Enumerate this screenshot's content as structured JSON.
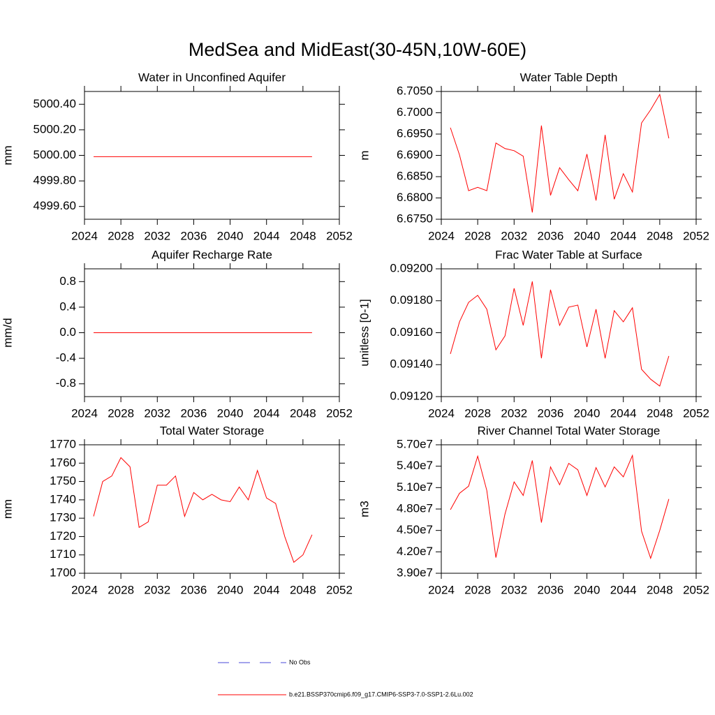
{
  "title": "MedSea and MidEast(30-45N,10W-60E)",
  "chart_data": [
    {
      "type": "line",
      "title": "Water in Unconfined Aquifer",
      "ylabel": "mm",
      "color": "#ff0000",
      "x": [
        2025,
        2026,
        2027,
        2028,
        2029,
        2030,
        2031,
        2032,
        2033,
        2034,
        2035,
        2036,
        2037,
        2038,
        2039,
        2040,
        2041,
        2042,
        2043,
        2044,
        2045,
        2046,
        2047,
        2048,
        2049
      ],
      "values": [
        4999.99,
        4999.99,
        4999.99,
        4999.99,
        4999.99,
        4999.99,
        4999.99,
        4999.99,
        4999.99,
        4999.99,
        4999.99,
        4999.99,
        4999.99,
        4999.99,
        4999.99,
        4999.99,
        4999.99,
        4999.99,
        4999.99,
        4999.99,
        4999.99,
        4999.99,
        4999.99,
        4999.99,
        4999.99
      ],
      "xlim": [
        2024,
        2052
      ],
      "xticks": [
        2024,
        2028,
        2032,
        2036,
        2040,
        2044,
        2048,
        2052
      ],
      "ylim": [
        4999.5,
        5000.5
      ],
      "yticks": [
        {
          "value": 4999.6,
          "label": "4999.60"
        },
        {
          "value": 4999.8,
          "label": "4999.80"
        },
        {
          "value": 5000,
          "label": "5000.00"
        },
        {
          "value": 5000.2,
          "label": "5000.20"
        },
        {
          "value": 5000.4,
          "label": "5000.40"
        }
      ]
    },
    {
      "type": "line",
      "title": "Water Table Depth",
      "ylabel": "m",
      "color": "#ff0000",
      "x": [
        2025,
        2026,
        2027,
        2028,
        2029,
        2030,
        2031,
        2032,
        2033,
        2034,
        2035,
        2036,
        2037,
        2038,
        2039,
        2040,
        2041,
        2042,
        2043,
        2044,
        2045,
        2046,
        2047,
        2048,
        2049
      ],
      "values": [
        6.6965,
        6.6901,
        6.6817,
        6.6825,
        6.6817,
        6.6929,
        6.6916,
        6.6911,
        6.6898,
        6.6766,
        6.697,
        6.6806,
        6.6871,
        6.6843,
        6.6817,
        6.6903,
        6.6794,
        6.6948,
        6.6797,
        6.6857,
        6.6814,
        6.6976,
        6.7007,
        6.7043,
        6.694
      ],
      "xlim": [
        2024,
        2052
      ],
      "xticks": [
        2024,
        2028,
        2032,
        2036,
        2040,
        2044,
        2048,
        2052
      ],
      "ylim": [
        6.675,
        6.705
      ],
      "yticks": [
        {
          "value": 6.675,
          "label": "6.6750"
        },
        {
          "value": 6.68,
          "label": "6.6800"
        },
        {
          "value": 6.685,
          "label": "6.6850"
        },
        {
          "value": 6.69,
          "label": "6.6900"
        },
        {
          "value": 6.695,
          "label": "6.6950"
        },
        {
          "value": 6.7,
          "label": "6.7000"
        },
        {
          "value": 6.705,
          "label": "6.7050"
        }
      ]
    },
    {
      "type": "line",
      "title": "Aquifer Recharge Rate",
      "ylabel": "mm/d",
      "color": "#ff0000",
      "x": [
        2025,
        2026,
        2027,
        2028,
        2029,
        2030,
        2031,
        2032,
        2033,
        2034,
        2035,
        2036,
        2037,
        2038,
        2039,
        2040,
        2041,
        2042,
        2043,
        2044,
        2045,
        2046,
        2047,
        2048,
        2049
      ],
      "values": [
        0,
        0,
        0,
        0,
        0,
        0,
        0,
        0,
        0,
        0,
        0,
        0,
        0,
        0,
        0,
        0,
        0,
        0,
        0,
        0,
        0,
        0,
        0,
        0,
        0
      ],
      "xlim": [
        2024,
        2052
      ],
      "xticks": [
        2024,
        2028,
        2032,
        2036,
        2040,
        2044,
        2048,
        2052
      ],
      "ylim": [
        -1,
        1
      ],
      "yticks": [
        -0.8,
        -0.4,
        {
          "value": 0,
          "label": "0.0"
        },
        0.4,
        0.8
      ]
    },
    {
      "type": "line",
      "title": "Frac Water Table at Surface",
      "ylabel": "unitless [0-1]",
      "color": "#ff0000",
      "x": [
        2025,
        2026,
        2027,
        2028,
        2029,
        2030,
        2031,
        2032,
        2033,
        2034,
        2035,
        2036,
        2037,
        2038,
        2039,
        2040,
        2041,
        2042,
        2043,
        2044,
        2045,
        2046,
        2047,
        2048,
        2049
      ],
      "values": [
        0.091467,
        0.091668,
        0.09179,
        0.091834,
        0.091747,
        0.091493,
        0.09158,
        0.091878,
        0.091646,
        0.091921,
        0.09144,
        0.091869,
        0.091646,
        0.09176,
        0.091773,
        0.091511,
        0.091747,
        0.09144,
        0.091738,
        0.091668,
        0.091756,
        0.091371,
        0.091309,
        0.091266,
        0.091454
      ],
      "xlim": [
        2024,
        2052
      ],
      "xticks": [
        2024,
        2028,
        2032,
        2036,
        2040,
        2044,
        2048,
        2052
      ],
      "ylim": [
        0.0912,
        0.092
      ],
      "yticks": [
        {
          "value": 0.0912,
          "label": "0.09120"
        },
        {
          "value": 0.0914,
          "label": "0.09140"
        },
        {
          "value": 0.0916,
          "label": "0.09160"
        },
        {
          "value": 0.0918,
          "label": "0.09180"
        },
        {
          "value": 0.092,
          "label": "0.09200"
        }
      ]
    },
    {
      "type": "line",
      "title": "Total Water Storage",
      "ylabel": "mm",
      "color": "#ff0000",
      "x": [
        2025,
        2026,
        2027,
        2028,
        2029,
        2030,
        2031,
        2032,
        2033,
        2034,
        2035,
        2036,
        2037,
        2038,
        2039,
        2040,
        2041,
        2042,
        2043,
        2044,
        2045,
        2046,
        2047,
        2048,
        2049
      ],
      "values": [
        1731,
        1750,
        1753,
        1763,
        1758,
        1725,
        1728,
        1748,
        1748,
        1753,
        1731,
        1744,
        1740,
        1743,
        1740,
        1739,
        1747,
        1740,
        1756,
        1741,
        1738,
        1720,
        1706,
        1710,
        1721
      ],
      "xlim": [
        2024,
        2052
      ],
      "xticks": [
        2024,
        2028,
        2032,
        2036,
        2040,
        2044,
        2048,
        2052
      ],
      "ylim": [
        1700,
        1770
      ],
      "yticks": [
        1700,
        1710,
        1720,
        1730,
        1740,
        1750,
        1760,
        1770
      ]
    },
    {
      "type": "line",
      "title": "River Channel Total Water Storage",
      "ylabel": "m3",
      "color": "#ff0000",
      "x": [
        2025,
        2026,
        2027,
        2028,
        2029,
        2030,
        2031,
        2032,
        2033,
        2034,
        2035,
        2036,
        2037,
        2038,
        2039,
        2040,
        2041,
        2042,
        2043,
        2044,
        2045,
        2046,
        2047,
        2048,
        2049
      ],
      "values": [
        47900000,
        50200000,
        51200000,
        55400000,
        50600000,
        41200000,
        47300000,
        51800000,
        49900000,
        54800000,
        46100000,
        53900000,
        51400000,
        54400000,
        53500000,
        49900000,
        53800000,
        51100000,
        53900000,
        52500000,
        55500000,
        44900000,
        41100000,
        45000000,
        49400000
      ],
      "xlim": [
        2024,
        2052
      ],
      "xticks": [
        2024,
        2028,
        2032,
        2036,
        2040,
        2044,
        2048,
        2052
      ],
      "ylim": [
        39000000,
        57000000
      ],
      "yticks": [
        {
          "value": 39000000,
          "label": "3.90e7"
        },
        {
          "value": 42000000,
          "label": "4.20e7"
        },
        {
          "value": 45000000,
          "label": "4.50e7"
        },
        {
          "value": 48000000,
          "label": "4.80e7"
        },
        {
          "value": 51000000,
          "label": "5.10e7"
        },
        {
          "value": 54000000,
          "label": "5.40e7"
        },
        {
          "value": 57000000,
          "label": "5.70e7"
        }
      ]
    }
  ],
  "legend": [
    {
      "name": "No Obs",
      "color": "#4a4ad8",
      "style": "dashed"
    },
    {
      "name": "b.e21.BSSP370cmip6.f09_g17.CMIP6-SSP3-7.0-SSP1-2.6Lu.002",
      "color": "#ff0000",
      "style": "solid"
    }
  ]
}
